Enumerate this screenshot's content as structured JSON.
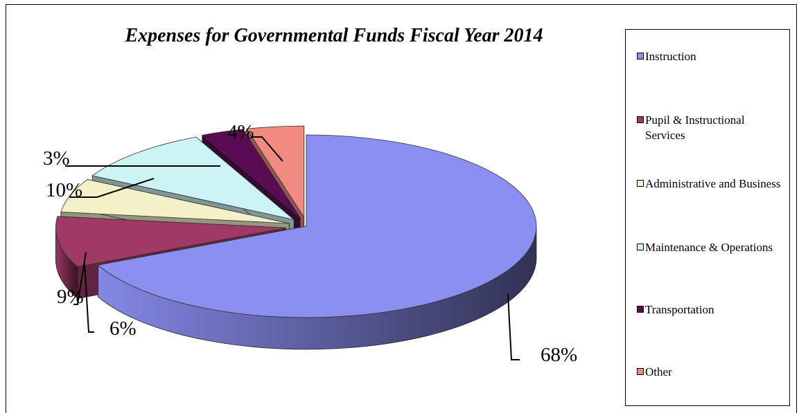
{
  "chart_data": {
    "type": "pie",
    "title": "Expenses for Governmental Funds Fiscal Year 2014",
    "legend_position": "right",
    "slices": [
      {
        "label": "Instruction",
        "value": 68,
        "display": "68%",
        "color": "#8b8ff0"
      },
      {
        "label": "Pupil & Instructional Services",
        "value": 9,
        "display": "9%",
        "color": "#9e3a64"
      },
      {
        "label": "Administrative and Business",
        "value": 6,
        "display": "6%",
        "color": "#f3f1c8"
      },
      {
        "label": "Maintenance & Operations",
        "value": 10,
        "display": "10%",
        "color": "#cdf4f4"
      },
      {
        "label": "Transportation",
        "value": 3,
        "display": "3%",
        "color": "#5a0b52"
      },
      {
        "label": "Other",
        "value": 4,
        "display": "4%",
        "color": "#f18a80"
      }
    ]
  }
}
